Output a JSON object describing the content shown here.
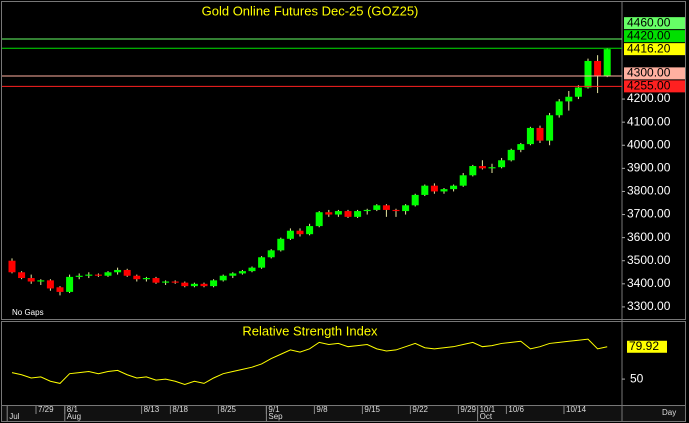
{
  "chart_data": [
    {
      "type": "candlestick",
      "title": "Gold Online Futures Dec-25 (GOZ25)",
      "note": "No Gaps",
      "open": [
        3500,
        3450,
        3425,
        3410,
        3415,
        3385,
        3365,
        3430,
        3435,
        3440,
        3435,
        3450,
        3460,
        3435,
        3420,
        3425,
        3405,
        3410,
        3405,
        3390,
        3400,
        3390,
        3415,
        3435,
        3445,
        3455,
        3470,
        3515,
        3545,
        3595,
        3630,
        3615,
        3650,
        3710,
        3700,
        3715,
        3690,
        3715,
        3720,
        3740,
        3720,
        3715,
        3740,
        3785,
        3825,
        3800,
        3810,
        3825,
        3870,
        3910,
        3900,
        3905,
        3935,
        3980,
        4005,
        4075,
        4020,
        4130,
        4190,
        4210,
        4250,
        4365,
        4300
      ],
      "high": [
        3510,
        3455,
        3440,
        3420,
        3420,
        3390,
        3440,
        3445,
        3450,
        3445,
        3455,
        3470,
        3465,
        3440,
        3430,
        3430,
        3415,
        3415,
        3410,
        3405,
        3405,
        3420,
        3440,
        3450,
        3460,
        3475,
        3520,
        3550,
        3600,
        3640,
        3640,
        3660,
        3715,
        3720,
        3720,
        3720,
        3720,
        3725,
        3745,
        3745,
        3725,
        3745,
        3790,
        3830,
        3835,
        3815,
        3830,
        3880,
        3915,
        3935,
        3920,
        3945,
        3985,
        4010,
        4080,
        4085,
        4140,
        4200,
        4235,
        4260,
        4375,
        4390,
        4420
      ],
      "low": [
        3445,
        3420,
        3400,
        3395,
        3370,
        3350,
        3360,
        3420,
        3425,
        3430,
        3430,
        3440,
        3430,
        3410,
        3410,
        3400,
        3395,
        3400,
        3385,
        3385,
        3385,
        3385,
        3410,
        3425,
        3440,
        3450,
        3465,
        3510,
        3540,
        3590,
        3605,
        3610,
        3645,
        3690,
        3690,
        3685,
        3685,
        3700,
        3715,
        3690,
        3690,
        3700,
        3735,
        3780,
        3790,
        3790,
        3800,
        3820,
        3865,
        3895,
        3880,
        3900,
        3930,
        3970,
        4000,
        4010,
        4000,
        4120,
        4150,
        4200,
        4245,
        4226,
        4295
      ],
      "close": [
        3450,
        3425,
        3410,
        3415,
        3380,
        3365,
        3430,
        3435,
        3440,
        3435,
        3450,
        3460,
        3435,
        3420,
        3425,
        3405,
        3410,
        3405,
        3390,
        3400,
        3390,
        3415,
        3435,
        3445,
        3455,
        3470,
        3515,
        3545,
        3595,
        3630,
        3615,
        3650,
        3710,
        3700,
        3715,
        3690,
        3715,
        3720,
        3740,
        3720,
        3715,
        3740,
        3785,
        3825,
        3800,
        3810,
        3825,
        3870,
        3910,
        3900,
        3905,
        3935,
        3980,
        4005,
        4075,
        4020,
        4130,
        4190,
        4210,
        4250,
        4365,
        4300,
        4416.2
      ],
      "up_color": "#00ff00",
      "down_color": "#ff0000",
      "ylim": [
        3252,
        4616
      ],
      "yticks": [
        {
          "value": 3300,
          "label": "3300.00"
        },
        {
          "value": 3400,
          "label": "3400.00"
        },
        {
          "value": 3500,
          "label": "3500.00"
        },
        {
          "value": 3600,
          "label": "3600.00"
        },
        {
          "value": 3700,
          "label": "3700.00"
        },
        {
          "value": 3800,
          "label": "3800.00"
        },
        {
          "value": 3900,
          "label": "3900.00"
        },
        {
          "value": 4000,
          "label": "4000.00"
        },
        {
          "value": 4100,
          "label": "4100.00"
        },
        {
          "value": 4200,
          "label": "4200.00"
        }
      ],
      "price_lines": [
        {
          "value": 4460,
          "label": "4460.00",
          "color": "#66ff66"
        },
        {
          "value": 4420,
          "label": "4420.00",
          "color": "#00e000"
        },
        {
          "value": 4300,
          "label": "4300.00",
          "color": "#ffb0a0"
        },
        {
          "value": 4255,
          "label": "4255.00",
          "color": "#ff2020"
        }
      ],
      "last_price": {
        "value": 4416.2,
        "label": "4416.20",
        "color": "#ffff00"
      }
    },
    {
      "type": "line",
      "title": "Relative Strength Index",
      "categories": [
        null,
        null,
        null,
        "7/29",
        null,
        null,
        "8/1",
        null,
        null,
        null,
        null,
        null,
        null,
        null,
        "8/13",
        null,
        null,
        "8/18",
        null,
        null,
        null,
        null,
        "8/25",
        null,
        null,
        null,
        null,
        "9/1",
        null,
        null,
        null,
        null,
        "9/8",
        null,
        null,
        null,
        null,
        "9/15",
        null,
        null,
        null,
        null,
        "9/22",
        null,
        null,
        null,
        null,
        "9/29",
        null,
        "10/1",
        null,
        null,
        "10/6",
        null,
        null,
        null,
        null,
        null,
        "10/14",
        null,
        null,
        null,
        null
      ],
      "months": [
        "Jul",
        null,
        null,
        null,
        null,
        null,
        "Aug",
        null,
        null,
        null,
        null,
        null,
        null,
        null,
        null,
        null,
        null,
        null,
        null,
        null,
        null,
        null,
        null,
        null,
        null,
        null,
        null,
        "Sep",
        null,
        null,
        null,
        null,
        null,
        null,
        null,
        null,
        null,
        null,
        null,
        null,
        null,
        null,
        null,
        null,
        null,
        null,
        null,
        null,
        null,
        "Oct",
        null,
        null,
        null,
        null,
        null,
        null,
        null,
        null,
        null,
        null,
        null,
        null,
        null,
        null
      ],
      "x_label": "Day",
      "series": [
        {
          "color": "#ffff00",
          "values": [
            56,
            54,
            51,
            52,
            48,
            46,
            55,
            56,
            57,
            55,
            57,
            58,
            54,
            51,
            52,
            49,
            50,
            48,
            45,
            48,
            46,
            51,
            55,
            57,
            59,
            61,
            64,
            69,
            73,
            77,
            75,
            78,
            84,
            82,
            83,
            80,
            81,
            82,
            78,
            76,
            77,
            80,
            83,
            79,
            78,
            79,
            80,
            82,
            84,
            80,
            81,
            83,
            84,
            85,
            78,
            80,
            83,
            84,
            85,
            86,
            87,
            78,
            79.92
          ]
        }
      ],
      "ylim": [
        26,
        101
      ],
      "yticks": [
        50
      ]
    }
  ]
}
